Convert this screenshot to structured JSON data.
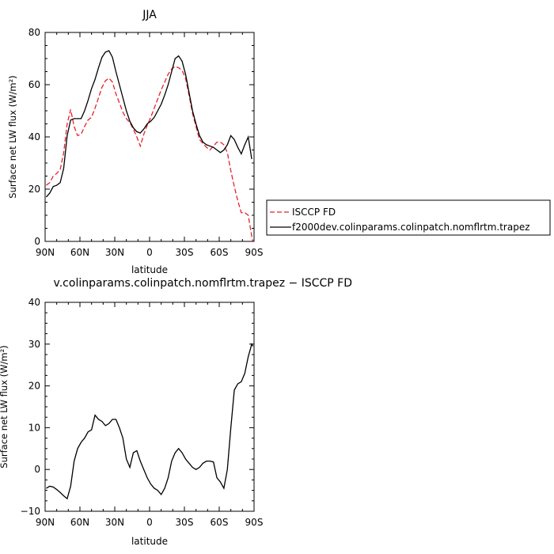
{
  "chart_data": [
    {
      "type": "line",
      "title": "JJA",
      "xlabel": "latitude",
      "ylabel": "Surface net LW flux (W/m²)",
      "xlim": [
        90,
        -90
      ],
      "ylim": [
        0,
        80
      ],
      "x_ticks": [
        {
          "value": 90,
          "label": "90N"
        },
        {
          "value": 60,
          "label": "60N"
        },
        {
          "value": 30,
          "label": "30N"
        },
        {
          "value": 0,
          "label": "0"
        },
        {
          "value": -30,
          "label": "30S"
        },
        {
          "value": -60,
          "label": "60S"
        },
        {
          "value": -90,
          "label": "90S"
        }
      ],
      "y_ticks": [
        0,
        20,
        40,
        60,
        80
      ],
      "legend_position": "right",
      "series": [
        {
          "name": "ISCCP FD",
          "color": "#e8202a",
          "dash": "dashed",
          "points": [
            [
              89,
              21.5
            ],
            [
              86,
              22.5
            ],
            [
              83,
              25
            ],
            [
              80,
              26
            ],
            [
              77,
              27.5
            ],
            [
              74,
              34
            ],
            [
              71,
              45
            ],
            [
              68,
              50.5
            ],
            [
              65,
              44
            ],
            [
              62,
              40.5
            ],
            [
              59,
              41
            ],
            [
              56,
              44
            ],
            [
              53,
              46.5
            ],
            [
              50,
              47.5
            ],
            [
              47,
              51
            ],
            [
              44,
              55
            ],
            [
              41,
              59
            ],
            [
              38,
              61.5
            ],
            [
              35,
              62.5
            ],
            [
              32,
              61
            ],
            [
              29,
              56.5
            ],
            [
              26,
              53
            ],
            [
              23,
              49.5
            ],
            [
              20,
              47
            ],
            [
              17,
              45.5
            ],
            [
              14,
              43
            ],
            [
              11,
              40
            ],
            [
              8,
              36.5
            ],
            [
              5,
              41
            ],
            [
              2,
              44.5
            ],
            [
              -1,
              47.5
            ],
            [
              -4,
              51
            ],
            [
              -7,
              54.5
            ],
            [
              -10,
              58
            ],
            [
              -13,
              61
            ],
            [
              -16,
              64
            ],
            [
              -19,
              66
            ],
            [
              -22,
              67
            ],
            [
              -25,
              66.5
            ],
            [
              -28,
              65.5
            ],
            [
              -31,
              62.5
            ],
            [
              -34,
              56
            ],
            [
              -37,
              49
            ],
            [
              -40,
              44
            ],
            [
              -43,
              39
            ],
            [
              -46,
              37.5
            ],
            [
              -49,
              36
            ],
            [
              -52,
              35
            ],
            [
              -55,
              36.5
            ],
            [
              -58,
              38
            ],
            [
              -61,
              38
            ],
            [
              -64,
              37
            ],
            [
              -67,
              34
            ],
            [
              -70,
              27
            ],
            [
              -73,
              21
            ],
            [
              -76,
              15.5
            ],
            [
              -79,
              11
            ],
            [
              -82,
              11
            ],
            [
              -85,
              10
            ],
            [
              -88,
              2
            ],
            [
              -89,
              0
            ]
          ]
        },
        {
          "name": "f2000dev.colinparams.colinpatch.nomflrtm.trapez",
          "color": "#000000",
          "dash": "solid",
          "points": [
            [
              89,
              17
            ],
            [
              86,
              18.5
            ],
            [
              83,
              21
            ],
            [
              80,
              21.5
            ],
            [
              77,
              22.5
            ],
            [
              74,
              28
            ],
            [
              71,
              40.5
            ],
            [
              68,
              46.5
            ],
            [
              65,
              47
            ],
            [
              62,
              47
            ],
            [
              59,
              47
            ],
            [
              56,
              50
            ],
            [
              53,
              54
            ],
            [
              50,
              58.5
            ],
            [
              47,
              62
            ],
            [
              44,
              66.5
            ],
            [
              41,
              70.5
            ],
            [
              38,
              72.5
            ],
            [
              35,
              73
            ],
            [
              32,
              70.5
            ],
            [
              29,
              65
            ],
            [
              26,
              60
            ],
            [
              23,
              55
            ],
            [
              20,
              50
            ],
            [
              17,
              46
            ],
            [
              14,
              43.5
            ],
            [
              11,
              42
            ],
            [
              8,
              41.5
            ],
            [
              5,
              43
            ],
            [
              2,
              45
            ],
            [
              -1,
              46
            ],
            [
              -4,
              47.5
            ],
            [
              -7,
              50
            ],
            [
              -10,
              52.5
            ],
            [
              -13,
              56
            ],
            [
              -16,
              60
            ],
            [
              -19,
              65
            ],
            [
              -22,
              70
            ],
            [
              -25,
              71
            ],
            [
              -28,
              69
            ],
            [
              -31,
              64
            ],
            [
              -34,
              57
            ],
            [
              -37,
              50
            ],
            [
              -40,
              45
            ],
            [
              -43,
              40.5
            ],
            [
              -46,
              38
            ],
            [
              -49,
              37
            ],
            [
              -52,
              36.5
            ],
            [
              -55,
              36
            ],
            [
              -58,
              35
            ],
            [
              -61,
              34
            ],
            [
              -64,
              35
            ],
            [
              -67,
              37
            ],
            [
              -70,
              40.5
            ],
            [
              -73,
              39
            ],
            [
              -76,
              36
            ],
            [
              -79,
              33.5
            ],
            [
              -82,
              37
            ],
            [
              -85,
              40
            ],
            [
              -88,
              31.5
            ]
          ]
        }
      ]
    },
    {
      "type": "line",
      "title": "v.colinparams.colinpatch.nomflrtm.trapez − ISCCP FD",
      "xlabel": "latitude",
      "ylabel": "Surface net LW flux (W/m²)",
      "xlim": [
        90,
        -90
      ],
      "ylim": [
        -10,
        40
      ],
      "x_ticks": [
        {
          "value": 90,
          "label": "90N"
        },
        {
          "value": 60,
          "label": "60N"
        },
        {
          "value": 30,
          "label": "30N"
        },
        {
          "value": 0,
          "label": "0"
        },
        {
          "value": -30,
          "label": "30S"
        },
        {
          "value": -60,
          "label": "60S"
        },
        {
          "value": -90,
          "label": "90S"
        }
      ],
      "y_ticks": [
        -10,
        0,
        10,
        20,
        30,
        40
      ],
      "series": [
        {
          "color": "#000000",
          "dash": "solid",
          "points": [
            [
              89,
              -4.5
            ],
            [
              86,
              -4
            ],
            [
              83,
              -4.2
            ],
            [
              80,
              -4.8
            ],
            [
              77,
              -5.5
            ],
            [
              74,
              -6.3
            ],
            [
              71,
              -7
            ],
            [
              68,
              -4
            ],
            [
              65,
              2
            ],
            [
              62,
              5
            ],
            [
              59,
              6.5
            ],
            [
              56,
              7.5
            ],
            [
              53,
              9
            ],
            [
              50,
              9.5
            ],
            [
              47,
              13
            ],
            [
              44,
              12
            ],
            [
              41,
              11.5
            ],
            [
              38,
              10.5
            ],
            [
              35,
              11
            ],
            [
              32,
              12
            ],
            [
              29,
              12
            ],
            [
              26,
              10
            ],
            [
              23,
              7.5
            ],
            [
              20,
              2.5
            ],
            [
              17,
              0.5
            ],
            [
              14,
              4
            ],
            [
              11,
              4.5
            ],
            [
              8,
              2
            ],
            [
              5,
              0
            ],
            [
              2,
              -2
            ],
            [
              -1,
              -3.5
            ],
            [
              -4,
              -4.5
            ],
            [
              -7,
              -5
            ],
            [
              -10,
              -6
            ],
            [
              -13,
              -4.5
            ],
            [
              -16,
              -2
            ],
            [
              -19,
              2
            ],
            [
              -22,
              4
            ],
            [
              -25,
              5
            ],
            [
              -28,
              4
            ],
            [
              -31,
              2.5
            ],
            [
              -34,
              1.5
            ],
            [
              -37,
              0.5
            ],
            [
              -40,
              0
            ],
            [
              -43,
              0.5
            ],
            [
              -46,
              1.5
            ],
            [
              -49,
              2
            ],
            [
              -52,
              2
            ],
            [
              -55,
              1.8
            ],
            [
              -58,
              -2
            ],
            [
              -61,
              -3
            ],
            [
              -64,
              -4.5
            ],
            [
              -67,
              0
            ],
            [
              -70,
              10
            ],
            [
              -73,
              19
            ],
            [
              -76,
              20.5
            ],
            [
              -79,
              21
            ],
            [
              -82,
              23
            ],
            [
              -85,
              27
            ],
            [
              -88,
              30
            ],
            [
              -89,
              29.5
            ]
          ]
        }
      ]
    }
  ]
}
